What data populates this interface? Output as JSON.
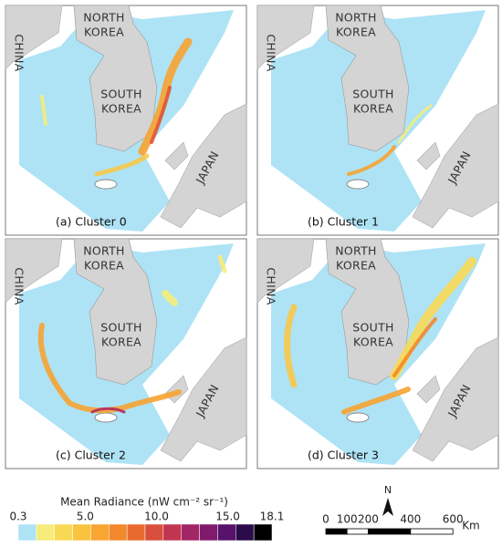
{
  "panels": [
    {
      "caption": "(a) Cluster 0"
    },
    {
      "caption": "(b) Cluster 1"
    },
    {
      "caption": "(c) Cluster 2"
    },
    {
      "caption": "(d) Cluster 3"
    }
  ],
  "country_labels": {
    "north_korea": [
      "NORTH",
      "KOREA"
    ],
    "south_korea": [
      "SOUTH",
      "KOREA"
    ],
    "china": "CHINA",
    "japan": "JAPAN"
  },
  "legend": {
    "title": "Mean Radiance (nW cm⁻² sr⁻¹)",
    "range": [
      0.3,
      18.1
    ],
    "ticks": [
      0.3,
      {
        "value": 5,
        "label": "5.0"
      },
      {
        "value": 10,
        "label": "10.0"
      },
      {
        "value": 15,
        "label": "15.0"
      },
      18.1
    ],
    "colors": [
      "#aee3f6",
      "#f6ec7a",
      "#f8d956",
      "#f9c23f",
      "#f7a632",
      "#f2892c",
      "#e96a2e",
      "#d94e3c",
      "#c13552",
      "#a22564",
      "#7f1a6c",
      "#57126a",
      "#2c0b4a",
      "#000000"
    ]
  },
  "north_arrow": "N",
  "scale_bar": {
    "ticks": [
      0,
      100,
      200,
      400,
      600
    ],
    "unit": "Km"
  }
}
